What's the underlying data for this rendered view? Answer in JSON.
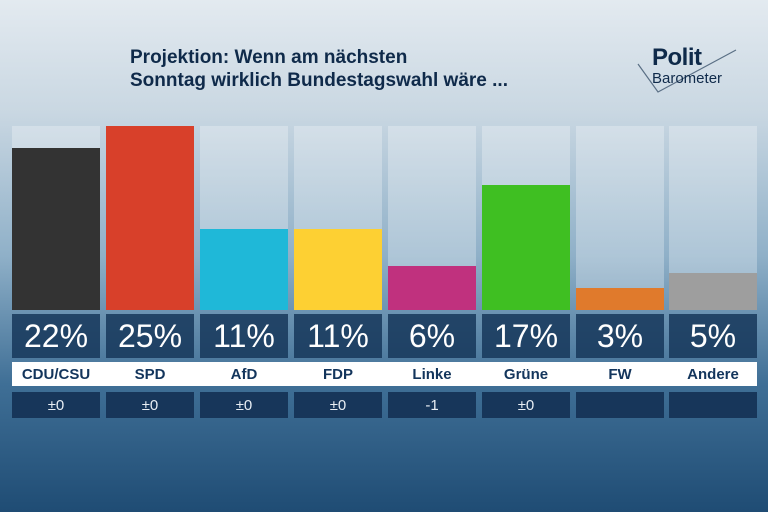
{
  "title_lines": [
    "Projektion: Wenn am nächsten",
    "Sonntag wirklich Bundestagswahl wäre ..."
  ],
  "logo": {
    "line1": "Polit",
    "line2": "Barometer"
  },
  "chart_data": {
    "type": "bar",
    "title": "Projektion: Wenn am nächsten Sonntag wirklich Bundestagswahl wäre ...",
    "categories": [
      "CDU/CSU",
      "SPD",
      "AfD",
      "FDP",
      "Linke",
      "Grüne",
      "FW",
      "Andere"
    ],
    "values": [
      22,
      25,
      11,
      11,
      6,
      17,
      3,
      5
    ],
    "value_labels": [
      "22%",
      "25%",
      "11%",
      "11%",
      "6%",
      "17%",
      "3%",
      "5%"
    ],
    "changes": [
      "±0",
      "±0",
      "±0",
      "±0",
      "-1",
      "±0",
      "",
      ""
    ],
    "colors": [
      "#333333",
      "#d8402a",
      "#1fb8d8",
      "#fdd033",
      "#c0317e",
      "#3fbf22",
      "#e07a2c",
      "#9e9e9e"
    ],
    "ylim": [
      0,
      25
    ],
    "grid": false
  }
}
